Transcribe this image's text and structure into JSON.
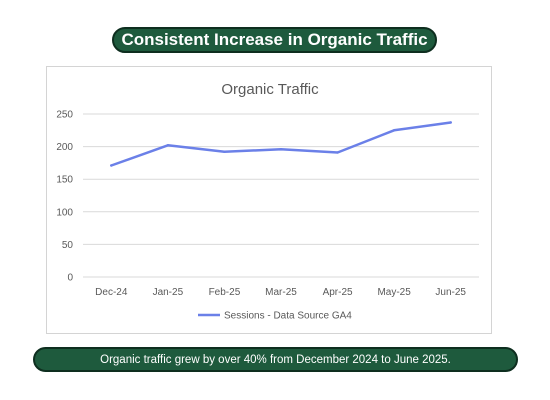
{
  "header": {
    "title": "Consistent Increase in Organic Traffic"
  },
  "footer": {
    "summary": "Organic traffic grew by over 40% from December 2024 to June 2025."
  },
  "chart_data": {
    "type": "line",
    "title": "Organic Traffic",
    "categories": [
      "Dec-24",
      "Jan-25",
      "Feb-25",
      "Mar-25",
      "Apr-25",
      "May-25",
      "Jun-25"
    ],
    "series": [
      {
        "name": "Sessions  - Data Source GA4",
        "values": [
          171,
          202,
          192,
          196,
          191,
          225,
          237
        ],
        "color": "#6b80e8"
      }
    ],
    "ylim": [
      0,
      250
    ],
    "yticks": [
      0,
      50,
      100,
      150,
      200,
      250
    ],
    "grid": true,
    "legend": "bottom"
  }
}
